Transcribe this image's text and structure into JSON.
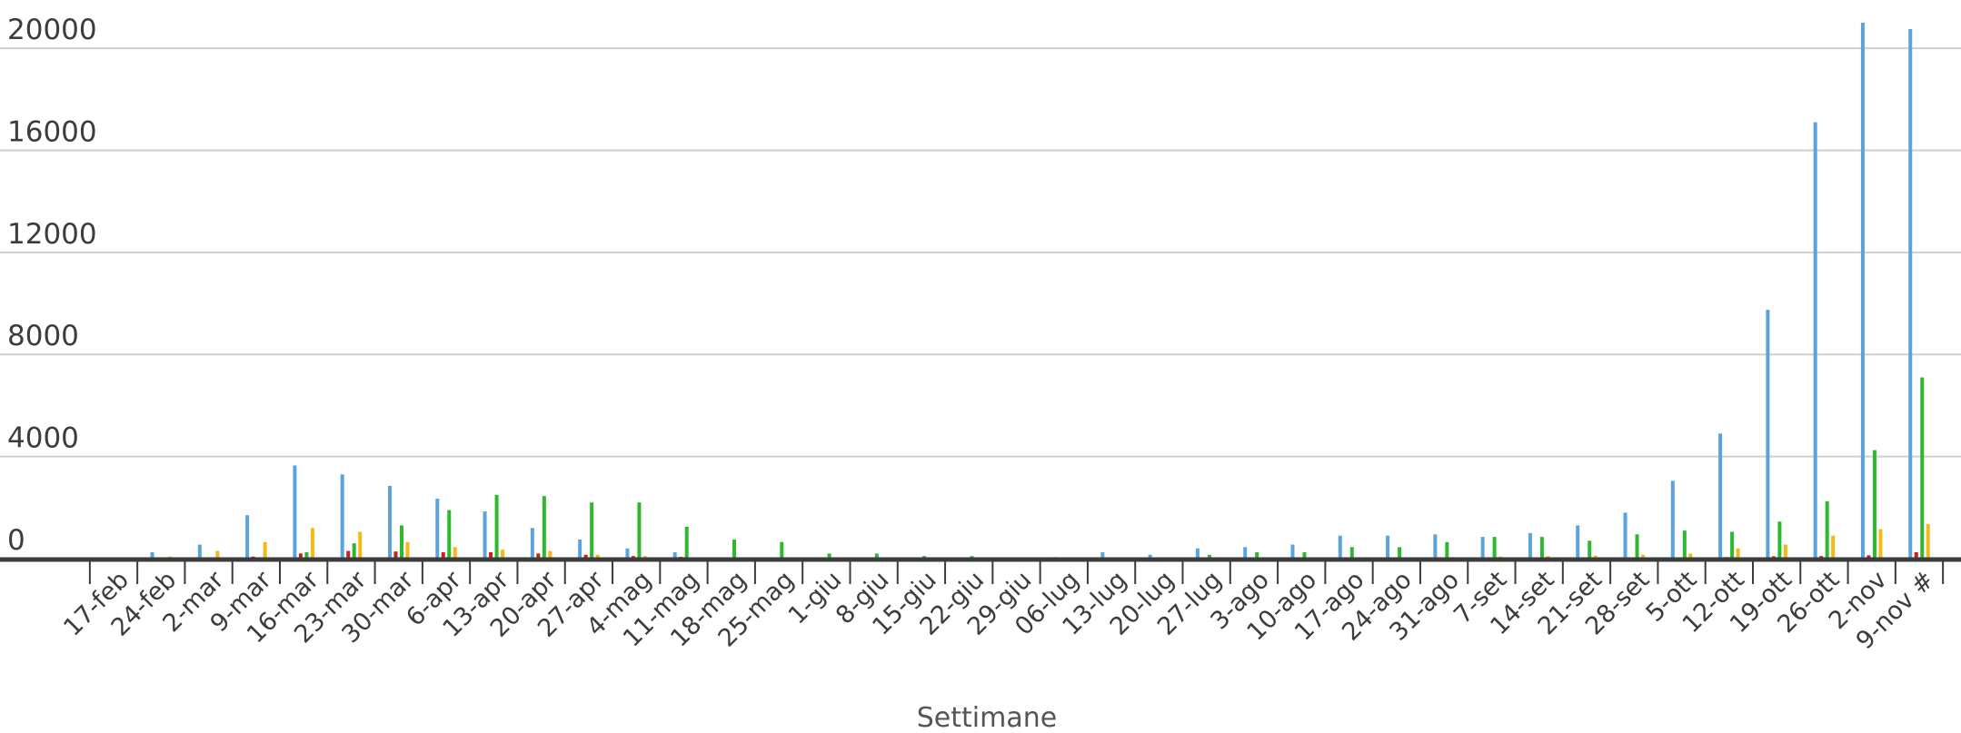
{
  "chart_data": {
    "type": "bar",
    "title": "",
    "xlabel": "Settimane",
    "ylabel": "",
    "ylim": [
      0,
      21000
    ],
    "yticks": [
      0,
      4000,
      8000,
      12000,
      16000,
      20000
    ],
    "grid": true,
    "legend": "none",
    "categories": [
      "17-feb",
      "24-feb",
      "2-mar",
      "9-mar",
      "16-mar",
      "23-mar",
      "30-mar",
      "6-apr",
      "13-apr",
      "20-apr",
      "27-apr",
      "4-mag",
      "11-mag",
      "18-mag",
      "25-mag",
      "1-giu",
      "8-giu",
      "15-giu",
      "22-giu",
      "29-giu",
      "06-lug",
      "13-lug",
      "20-lug",
      "27-lug",
      "3-ago",
      "10-ago",
      "17-ago",
      "24-ago",
      "31-ago",
      "7-set",
      "14-set",
      "21-set",
      "28-set",
      "5-ott",
      "12-ott",
      "19-ott",
      "26-ott",
      "2-nov",
      "9-nov #"
    ],
    "series": [
      {
        "color": "#5ba3dc",
        "values": [
          20,
          250,
          550,
          1700,
          3650,
          3300,
          2850,
          2350,
          1850,
          1200,
          750,
          400,
          250,
          50,
          30,
          20,
          10,
          20,
          10,
          20,
          60,
          250,
          150,
          400,
          450,
          550,
          900,
          900,
          950,
          850,
          1000,
          1300,
          1800,
          3050,
          4900,
          9750,
          17100,
          21000,
          20750
        ]
      },
      {
        "color": "#d7191c",
        "values": [
          5,
          20,
          30,
          80,
          200,
          300,
          280,
          250,
          250,
          200,
          150,
          100,
          70,
          40,
          20,
          10,
          10,
          5,
          5,
          5,
          5,
          5,
          5,
          10,
          10,
          10,
          10,
          10,
          15,
          15,
          15,
          20,
          30,
          40,
          60,
          90,
          100,
          130,
          250
        ]
      },
      {
        "color": "#2db92d",
        "values": [
          5,
          20,
          30,
          50,
          250,
          600,
          1300,
          1900,
          2500,
          2450,
          2200,
          2200,
          1250,
          750,
          650,
          200,
          200,
          100,
          100,
          50,
          50,
          50,
          50,
          150,
          250,
          250,
          450,
          450,
          650,
          850,
          850,
          700,
          950,
          1100,
          1050,
          1450,
          2250,
          4250,
          7100
        ]
      },
      {
        "color": "#f5b916",
        "values": [
          40,
          80,
          300,
          650,
          1200,
          1050,
          650,
          450,
          350,
          300,
          150,
          100,
          50,
          30,
          20,
          10,
          10,
          10,
          5,
          5,
          5,
          5,
          10,
          10,
          15,
          20,
          30,
          50,
          60,
          80,
          100,
          120,
          150,
          200,
          400,
          550,
          900,
          1150,
          1350
        ]
      }
    ]
  }
}
